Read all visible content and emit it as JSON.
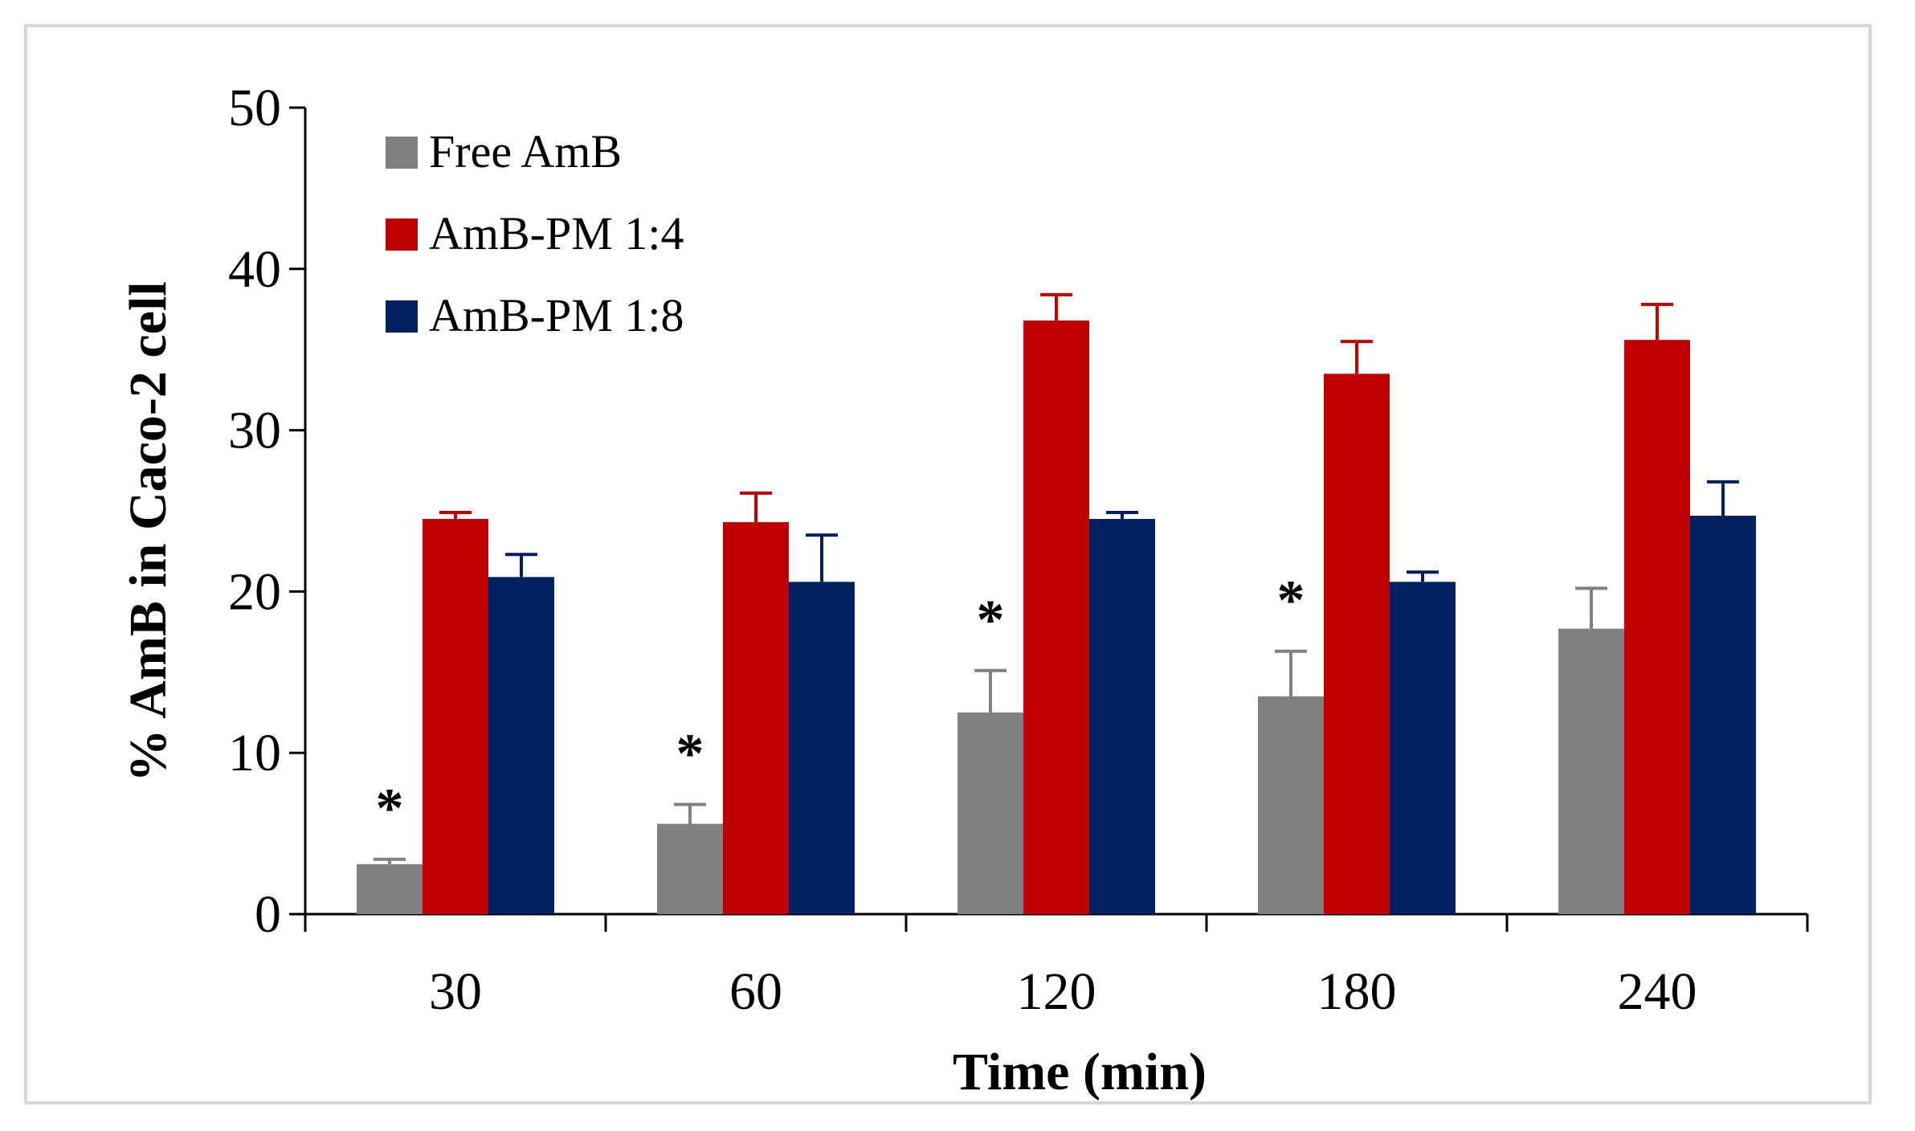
{
  "chart_data": {
    "type": "bar",
    "title": "",
    "xlabel": "Time (min)",
    "ylabel": "% AmB in Caco-2 cell",
    "ylim": [
      0,
      50
    ],
    "yticks": [
      "0",
      "10",
      "20",
      "30",
      "40",
      "50"
    ],
    "categories": [
      "30",
      "60",
      "120",
      "180",
      "240"
    ],
    "grid": false,
    "legend_position": "top-left",
    "series": [
      {
        "name": "Free AmB",
        "color": "#808080",
        "values": [
          3.1,
          5.6,
          12.5,
          13.5,
          17.7
        ],
        "errors": [
          0.3,
          1.2,
          2.6,
          2.8,
          2.5
        ],
        "significance": [
          "*",
          "*",
          "*",
          "*",
          ""
        ]
      },
      {
        "name": "AmB-PM 1:4",
        "color": "#c00000",
        "values": [
          24.5,
          24.3,
          36.8,
          33.5,
          35.6
        ],
        "errors": [
          0.4,
          1.8,
          1.6,
          2.0,
          2.2
        ]
      },
      {
        "name": "AmB-PM 1:8",
        "color": "#002060",
        "values": [
          20.9,
          20.6,
          24.5,
          20.6,
          24.7
        ],
        "errors": [
          1.4,
          2.9,
          0.4,
          0.6,
          2.1
        ]
      }
    ]
  }
}
